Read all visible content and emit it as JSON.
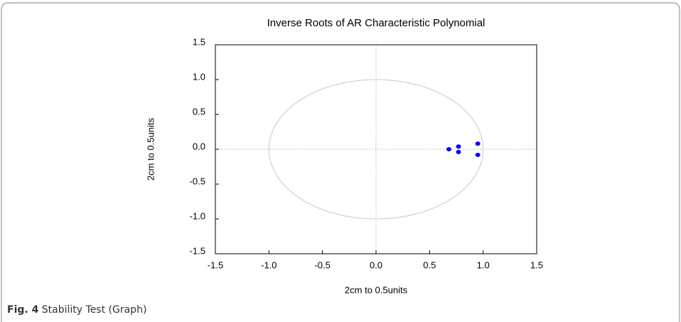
{
  "chart_data": {
    "type": "scatter",
    "title": "Inverse Roots of AR Characteristic Polynomial",
    "xlabel": "2cm to 0.5units",
    "ylabel": "2cm to 0.5units",
    "x": [
      0.68,
      0.77,
      0.77,
      0.95,
      0.95
    ],
    "y": [
      0.0,
      0.04,
      -0.04,
      0.08,
      -0.08
    ],
    "color": "#0000ff",
    "xlim": [
      -1.5,
      1.5
    ],
    "ylim": [
      -1.5,
      1.5
    ],
    "xticks": [
      -1.5,
      {
        "value": -1,
        "label": "-1.0"
      },
      -0.5,
      {
        "value": 0,
        "label": "0.0"
      },
      0.5,
      {
        "value": 1,
        "label": "1.0"
      },
      1.5
    ],
    "yticks": [
      -1.5,
      {
        "value": -1,
        "label": "-1.0"
      },
      -0.5,
      {
        "value": 0,
        "label": "0.0"
      },
      0.5,
      {
        "value": 1,
        "label": "1.0"
      },
      1.5
    ],
    "unit_circle": true
  },
  "caption": {
    "label": "Fig. 4",
    "text": "Stability Test (Graph)"
  }
}
